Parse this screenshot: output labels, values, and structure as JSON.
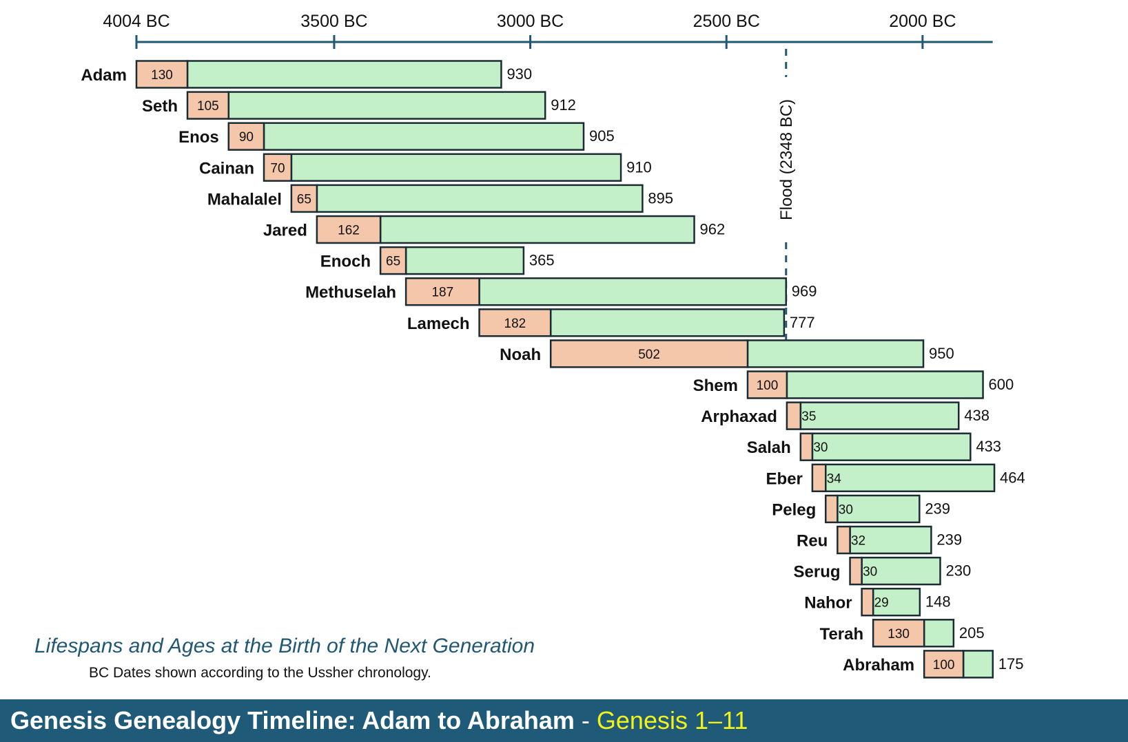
{
  "chart_data": {
    "type": "bar",
    "orientation": "horizontal-timeline",
    "title": "Lifespans and Ages at the Birth of the Next Generation",
    "subtitle": "BC Dates shown according to the Ussher chronology.",
    "x_axis": {
      "ticks": [
        4004,
        3500,
        3000,
        2500,
        2000
      ],
      "tick_labels": [
        "4004 BC",
        "3500 BC",
        "3000 BC",
        "2500 BC",
        "2000 BC"
      ],
      "range": [
        4004,
        1830
      ]
    },
    "series": [
      {
        "name": "Age at the Birth of the Next Generation",
        "color": "#f4c6aa"
      },
      {
        "name": "Lifespan",
        "color": "#c3f0c8"
      }
    ],
    "people": [
      {
        "name": "Adam",
        "birth_bc": 4004,
        "age_at_birth": "130",
        "age_value": 130,
        "lifespan": "930",
        "lifespan_value": 930
      },
      {
        "name": "Seth",
        "birth_bc": 3874,
        "age_at_birth": "105",
        "age_value": 105,
        "lifespan": "912",
        "lifespan_value": 912
      },
      {
        "name": "Enos",
        "birth_bc": 3769,
        "age_at_birth": "90",
        "age_value": 90,
        "lifespan": "905",
        "lifespan_value": 905
      },
      {
        "name": "Cainan",
        "birth_bc": 3679,
        "age_at_birth": "70",
        "age_value": 70,
        "lifespan": "910",
        "lifespan_value": 910
      },
      {
        "name": "Mahalalel",
        "birth_bc": 3609,
        "age_at_birth": "65",
        "age_value": 65,
        "lifespan": "895",
        "lifespan_value": 895
      },
      {
        "name": "Jared",
        "birth_bc": 3544,
        "age_at_birth": "162",
        "age_value": 162,
        "lifespan": "962",
        "lifespan_value": 962
      },
      {
        "name": "Enoch",
        "birth_bc": 3382,
        "age_at_birth": "65",
        "age_value": 65,
        "lifespan": "365",
        "lifespan_value": 365
      },
      {
        "name": "Methuselah",
        "birth_bc": 3317,
        "age_at_birth": "187",
        "age_value": 187,
        "lifespan": "969",
        "lifespan_value": 969
      },
      {
        "name": "Lamech",
        "birth_bc": 3130,
        "age_at_birth": "182",
        "age_value": 182,
        "lifespan": "777",
        "lifespan_value": 777
      },
      {
        "name": "Noah",
        "birth_bc": 2948,
        "age_at_birth": "502",
        "age_value": 502,
        "lifespan": "950",
        "lifespan_value": 950
      },
      {
        "name": "Shem",
        "birth_bc": 2446,
        "age_at_birth": "100",
        "age_value": 100,
        "lifespan": "600",
        "lifespan_value": 600
      },
      {
        "name": "Arphaxad",
        "birth_bc": 2346,
        "age_at_birth": "35",
        "age_value": 35,
        "lifespan": "438",
        "lifespan_value": 438
      },
      {
        "name": "Salah",
        "birth_bc": 2311,
        "age_at_birth": "30",
        "age_value": 30,
        "lifespan": "433",
        "lifespan_value": 433
      },
      {
        "name": "Eber",
        "birth_bc": 2281,
        "age_at_birth": "34",
        "age_value": 34,
        "lifespan": "464",
        "lifespan_value": 464
      },
      {
        "name": "Peleg",
        "birth_bc": 2247,
        "age_at_birth": "30",
        "age_value": 30,
        "lifespan": "239",
        "lifespan_value": 239
      },
      {
        "name": "Reu",
        "birth_bc": 2217,
        "age_at_birth": "32",
        "age_value": 32,
        "lifespan": "239",
        "lifespan_value": 239
      },
      {
        "name": "Serug",
        "birth_bc": 2185,
        "age_at_birth": "30",
        "age_value": 30,
        "lifespan": "230",
        "lifespan_value": 230
      },
      {
        "name": "Nahor",
        "birth_bc": 2155,
        "age_at_birth": "29",
        "age_value": 29,
        "lifespan": "148",
        "lifespan_value": 148
      },
      {
        "name": "Terah",
        "birth_bc": 2126,
        "age_at_birth": "130",
        "age_value": 130,
        "lifespan": "205",
        "lifespan_value": 205
      },
      {
        "name": "Abraham",
        "birth_bc": 1996,
        "age_at_birth": "100",
        "age_value": 100,
        "lifespan": "175",
        "lifespan_value": 175
      }
    ],
    "annotations": [
      {
        "label": "Flood (2348 BC)",
        "x_bc": 2348,
        "style": "dashed-vertical"
      }
    ],
    "grid": false
  },
  "footer": {
    "title": "Genesis Genealogy Timeline: Adam to Abraham",
    "separator": "-",
    "reference": "Genesis 1–11"
  }
}
